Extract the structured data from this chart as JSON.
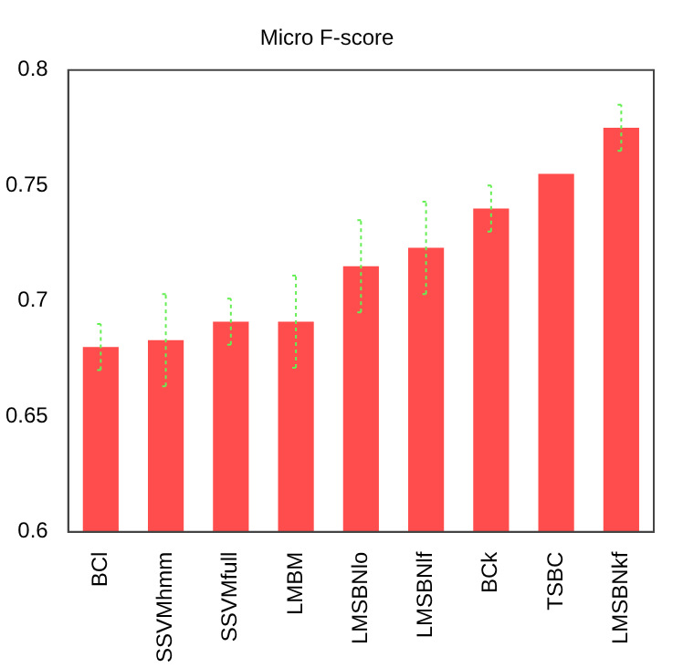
{
  "chart_data": {
    "type": "bar",
    "title": "Micro F-score",
    "categories": [
      "BCl",
      "SSVMhmm",
      "SSVMfull",
      "LMBM",
      "LMSBNlo",
      "LMSBNlf",
      "BCk",
      "TSBC",
      "LMSBNkf"
    ],
    "values": [
      0.68,
      0.683,
      0.691,
      0.691,
      0.715,
      0.723,
      0.74,
      0.755,
      0.775
    ],
    "errors": [
      0.01,
      0.02,
      0.01,
      0.02,
      0.02,
      0.02,
      0.01,
      null,
      0.01
    ],
    "color": "#ff4d4d",
    "ylim": [
      0.6,
      0.8
    ],
    "yticks": [
      0.6,
      0.65,
      0.7,
      0.75,
      0.8
    ],
    "grid": false,
    "legend": false
  }
}
